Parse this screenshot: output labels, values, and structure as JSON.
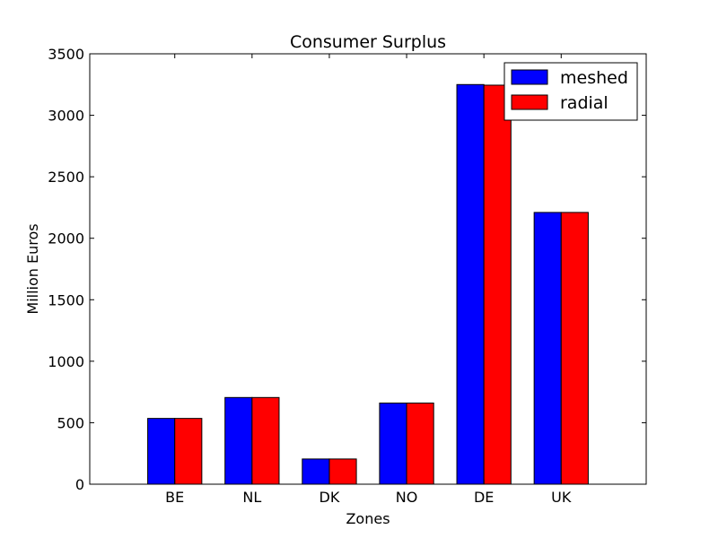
{
  "chart_data": {
    "type": "bar",
    "title": "Consumer Surplus",
    "xlabel": "Zones",
    "ylabel": "Million Euros",
    "categories": [
      "BE",
      "NL",
      "DK",
      "NO",
      "DE",
      "UK"
    ],
    "series": [
      {
        "name": "meshed",
        "color": "#0000ff",
        "values": [
          535,
          705,
          205,
          660,
          3250,
          2210
        ]
      },
      {
        "name": "radial",
        "color": "#ff0000",
        "values": [
          535,
          705,
          205,
          660,
          3245,
          2210
        ]
      }
    ],
    "ylim": [
      0,
      3500
    ],
    "yticks": [
      "0",
      "500",
      "1000",
      "1500",
      "2000",
      "2500",
      "3000",
      "3500"
    ],
    "grid": false,
    "legend_position": "top-right"
  }
}
